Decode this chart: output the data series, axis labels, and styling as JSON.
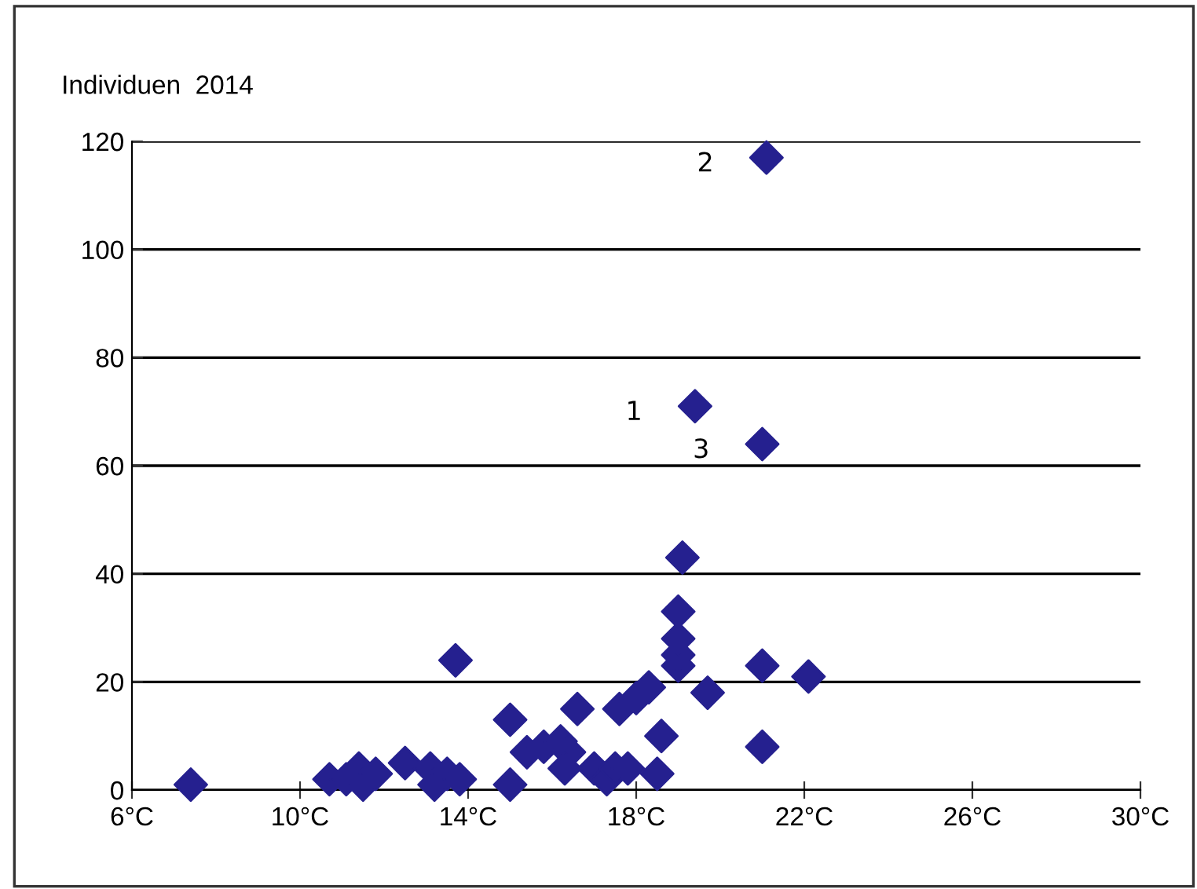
{
  "chart_data": {
    "type": "scatter",
    "ylabel": "Individuen  2014",
    "x": [
      7.4,
      10.7,
      11.1,
      11.4,
      11.5,
      11.8,
      12.5,
      13.1,
      13.2,
      13.5,
      13.8,
      13.7,
      15.0,
      15.0,
      15.4,
      15.8,
      16.2,
      16.4,
      16.6,
      16.3,
      17.0,
      17.3,
      17.5,
      17.8,
      17.6,
      18.0,
      18.3,
      18.5,
      18.6,
      19.0,
      19.0,
      19.0,
      19.0,
      19.1,
      19.7,
      21.0,
      21.0,
      22.1,
      19.4,
      21.0,
      21.1
    ],
    "values": [
      1,
      2,
      2,
      4,
      1,
      3,
      5,
      4,
      1,
      3,
      2,
      24,
      13,
      1,
      7,
      8,
      9,
      7,
      15,
      4,
      4,
      2,
      4,
      4,
      15,
      17,
      19,
      3,
      10,
      23,
      25,
      28,
      33,
      43,
      18,
      23,
      8,
      21,
      71,
      64,
      117
    ],
    "color": "#25208f",
    "marker": "diamond",
    "xlim": [
      6,
      30
    ],
    "xticks": [
      {
        "value": 6,
        "label": "6°C"
      },
      {
        "value": 10,
        "label": "10°C"
      },
      {
        "value": 14,
        "label": "14°C"
      },
      {
        "value": 18,
        "label": "18°C"
      },
      {
        "value": 22,
        "label": "22°C"
      },
      {
        "value": 26,
        "label": "26°C"
      },
      {
        "value": 30,
        "label": "30°C"
      }
    ],
    "ylim": [
      0,
      120
    ],
    "yticks": [
      0,
      20,
      40,
      60,
      80,
      100,
      120
    ],
    "grid": "y",
    "annotations": [
      {
        "text": "1",
        "x": 19.4,
        "y": 71
      },
      {
        "text": "2",
        "x": 21.1,
        "y": 117
      },
      {
        "text": "3",
        "x": 21.0,
        "y": 64
      }
    ]
  }
}
